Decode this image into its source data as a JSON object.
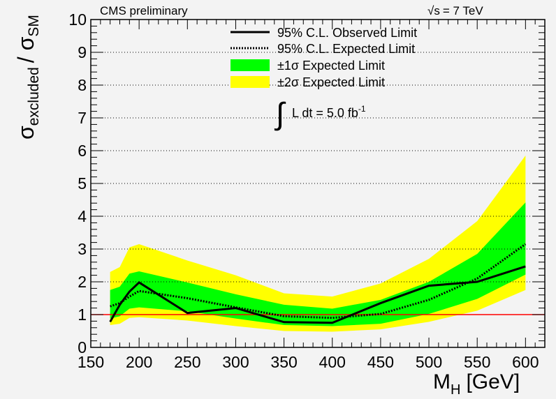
{
  "chart_data": {
    "type": "line",
    "header_left": "CMS preliminary",
    "header_right": "= 7 TeV",
    "sqrt_s_symbol": "√s",
    "lumi_label": "L dt = 5.0 fb",
    "lumi_exponent": "-1",
    "xlabel": "M",
    "xlabel_sub": "H",
    "xlabel_unit": "[GeV]",
    "ylabel_main": "σ",
    "ylabel_sub1": "excluded",
    "ylabel_slash": "/ σ",
    "ylabel_sub2": "SM",
    "xlim": [
      150,
      620
    ],
    "ylim": [
      0,
      10
    ],
    "x_ticks": [
      "150",
      "200",
      "250",
      "300",
      "350",
      "400",
      "450",
      "500",
      "550",
      "600"
    ],
    "y_ticks": [
      "0",
      "1",
      "2",
      "3",
      "4",
      "5",
      "6",
      "7",
      "8",
      "9",
      "10"
    ],
    "grid": "horizontal dotted",
    "legend_position": "top-center",
    "legend": [
      {
        "label": "95% C.L. Observed Limit",
        "style": "solid-line"
      },
      {
        "label": "95% C.L. Expected Limit",
        "style": "dotted-line"
      },
      {
        "label": "±1σ Expected Limit",
        "style": "green-box"
      },
      {
        "label": "±2σ Expected Limit",
        "style": "yellow-box"
      }
    ],
    "colors": {
      "band1": "#00ff00",
      "band2": "#ffff00",
      "sm_line": "#ff0000",
      "frame": "#000000"
    },
    "reference_line": 1,
    "x": [
      170,
      180,
      190,
      200,
      250,
      300,
      350,
      400,
      450,
      500,
      550,
      600
    ],
    "series": [
      {
        "name": "95% C.L. Observed Limit",
        "values": [
          0.78,
          1.3,
          1.7,
          1.98,
          1.05,
          1.2,
          0.77,
          0.75,
          1.35,
          1.88,
          2.0,
          2.47
        ]
      },
      {
        "name": "95% C.L. Expected Limit",
        "values": [
          1.25,
          1.35,
          1.55,
          1.72,
          1.5,
          1.22,
          0.95,
          0.9,
          1.02,
          1.45,
          2.1,
          3.15
        ]
      }
    ],
    "bands": {
      "two_sigma_upper": [
        2.3,
        2.45,
        3.05,
        3.15,
        2.65,
        2.2,
        1.65,
        1.55,
        1.95,
        2.7,
        3.85,
        5.85
      ],
      "one_sigma_upper": [
        1.75,
        1.85,
        2.25,
        2.32,
        1.98,
        1.62,
        1.3,
        1.18,
        1.45,
        2.0,
        2.85,
        4.42
      ],
      "one_sigma_lower": [
        0.88,
        0.95,
        1.18,
        1.22,
        1.1,
        0.88,
        0.68,
        0.65,
        0.72,
        1.02,
        1.48,
        2.22
      ],
      "two_sigma_lower": [
        0.68,
        0.72,
        0.9,
        0.92,
        0.82,
        0.65,
        0.5,
        0.48,
        0.55,
        0.78,
        1.12,
        1.75
      ]
    }
  }
}
